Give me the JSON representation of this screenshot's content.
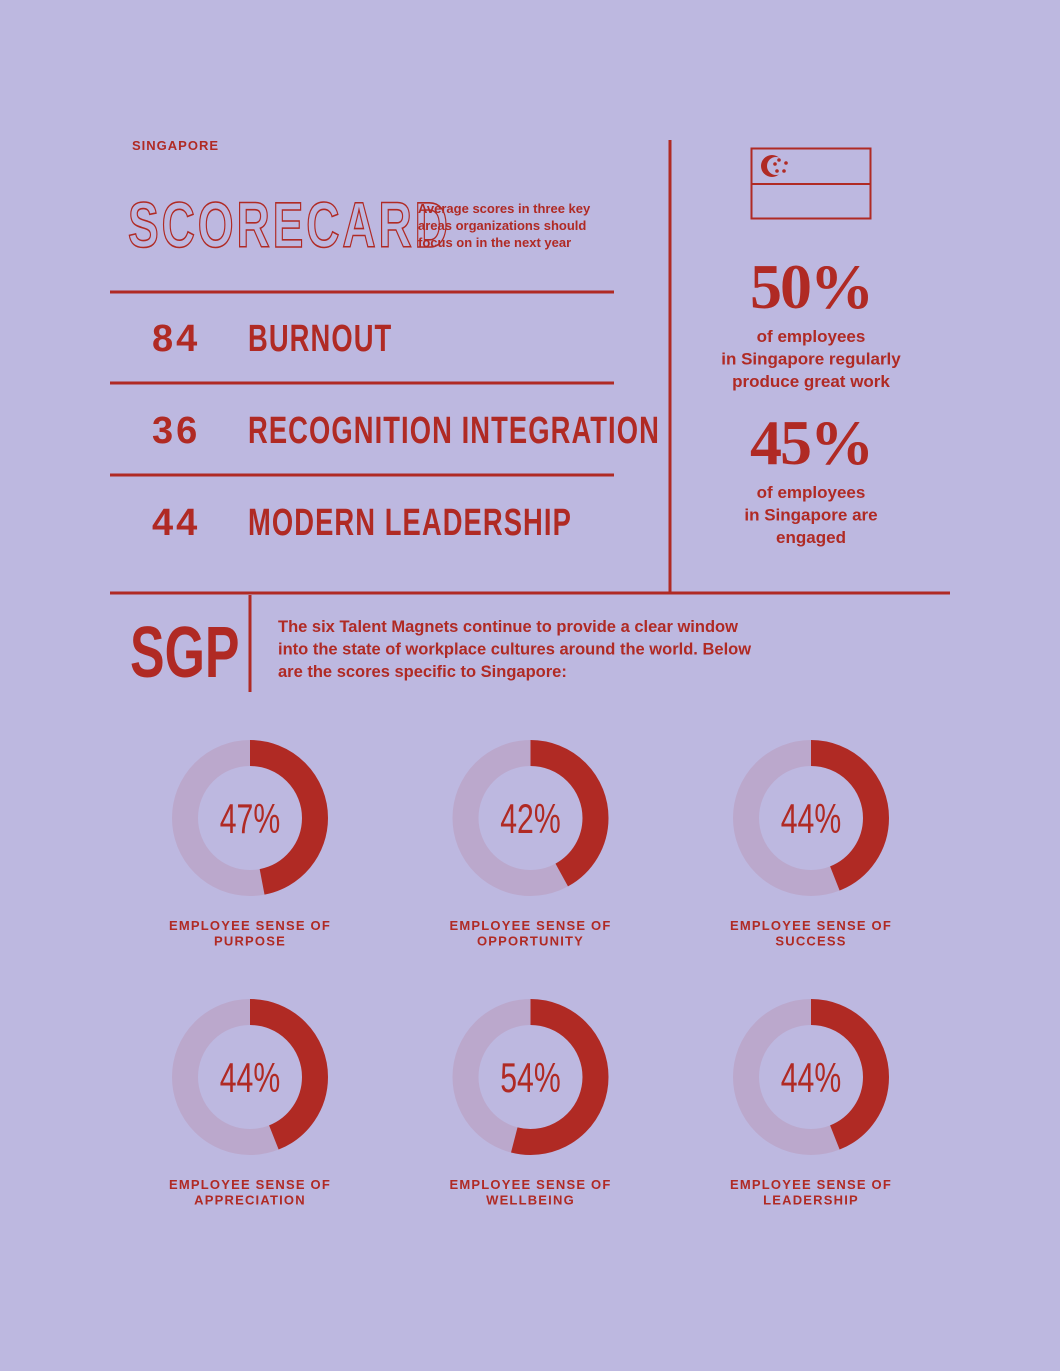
{
  "header": {
    "region": "SINGAPORE",
    "title": "SCORECARD",
    "description_lines": [
      "Average scores in three key",
      "areas organizations should",
      "focus on in the next year"
    ]
  },
  "scorecard": [
    {
      "score": 84,
      "label": "BURNOUT"
    },
    {
      "score": 36,
      "label": "RECOGNITION INTEGRATION"
    },
    {
      "score": 44,
      "label": "MODERN LEADERSHIP"
    }
  ],
  "stats": [
    {
      "value": "50%",
      "caption_lines": [
        "of employees",
        "in Singapore regularly",
        "produce great work"
      ]
    },
    {
      "value": "45%",
      "caption_lines": [
        "of employees",
        "in Singapore are",
        "engaged"
      ]
    }
  ],
  "intro": {
    "code": "SGP",
    "text_lines": [
      "The six Talent Magnets continue to provide a clear window",
      "into the state of workplace cultures around the world. Below",
      "are the scores specific to Singapore:"
    ]
  },
  "donuts": [
    {
      "value": 47,
      "label": "47%",
      "caption_lines": [
        "EMPLOYEE SENSE OF",
        "PURPOSE"
      ]
    },
    {
      "value": 42,
      "label": "42%",
      "caption_lines": [
        "EMPLOYEE SENSE OF",
        "OPPORTUNITY"
      ]
    },
    {
      "value": 44,
      "label": "44%",
      "caption_lines": [
        "EMPLOYEE SENSE OF",
        "SUCCESS"
      ]
    },
    {
      "value": 44,
      "label": "44%",
      "caption_lines": [
        "EMPLOYEE SENSE OF",
        "APPRECIATION"
      ]
    },
    {
      "value": 54,
      "label": "54%",
      "caption_lines": [
        "EMPLOYEE SENSE OF",
        "WELLBEING"
      ]
    },
    {
      "value": 44,
      "label": "44%",
      "caption_lines": [
        "EMPLOYEE SENSE OF",
        "LEADERSHIP"
      ]
    }
  ]
}
